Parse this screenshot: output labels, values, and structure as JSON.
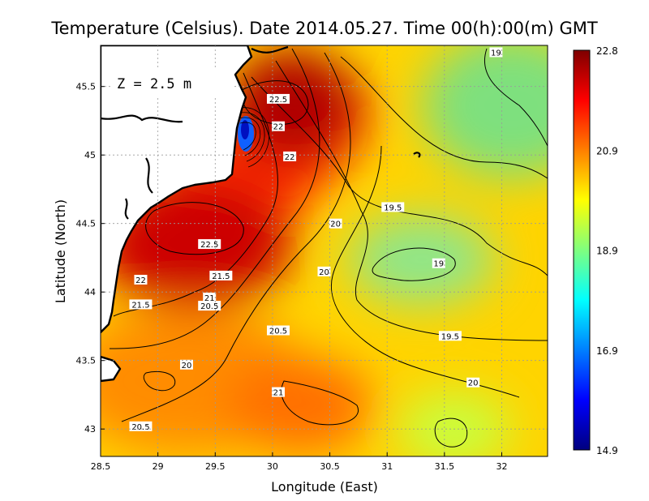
{
  "chart_data": {
    "type": "heatmap",
    "title": "Temperature (Celsius). Date 2014.05.27. Time 00(h):00(m)  GMT",
    "xlabel": "Longitude (East)",
    "ylabel": "Latitude (North)",
    "xlim": [
      28.5,
      32.4
    ],
    "ylim": [
      42.8,
      45.8
    ],
    "x_ticks": [
      "28.5",
      "29",
      "29.5",
      "30",
      "30.5",
      "31",
      "31.5",
      "32"
    ],
    "y_ticks": [
      "43",
      "43.5",
      "44",
      "44.5",
      "45",
      "45.5"
    ],
    "grid": true,
    "annotation": "Z = 2.5 m",
    "colorbar": {
      "min": 14.9,
      "max": 22.8,
      "tick_labels": [
        "22.8",
        "20.9",
        "18.9",
        "16.9",
        "14.9"
      ],
      "colors": [
        "#00007f",
        "#0000ff",
        "#007fff",
        "#00ffff",
        "#7fff7f",
        "#ffff00",
        "#ff7f00",
        "#ff0000",
        "#7f0000"
      ]
    },
    "contour_labels": [
      {
        "text": "22.5",
        "lon": 30.05,
        "lat": 45.41
      },
      {
        "text": "22",
        "lon": 30.05,
        "lat": 45.21
      },
      {
        "text": "22",
        "lon": 30.15,
        "lat": 44.99
      },
      {
        "text": "19",
        "lon": 31.95,
        "lat": 45.75
      },
      {
        "text": "19.5",
        "lon": 31.05,
        "lat": 44.62
      },
      {
        "text": "20",
        "lon": 30.55,
        "lat": 44.5
      },
      {
        "text": "22.5",
        "lon": 29.45,
        "lat": 44.35
      },
      {
        "text": "19",
        "lon": 31.45,
        "lat": 44.21
      },
      {
        "text": "20",
        "lon": 30.45,
        "lat": 44.15
      },
      {
        "text": "21.5",
        "lon": 29.55,
        "lat": 44.12
      },
      {
        "text": "22",
        "lon": 28.85,
        "lat": 44.09
      },
      {
        "text": "21",
        "lon": 29.45,
        "lat": 43.96
      },
      {
        "text": "20.5",
        "lon": 29.45,
        "lat": 43.9
      },
      {
        "text": "21.5",
        "lon": 28.85,
        "lat": 43.91
      },
      {
        "text": "20.5",
        "lon": 30.05,
        "lat": 43.72
      },
      {
        "text": "19.5",
        "lon": 31.55,
        "lat": 43.68
      },
      {
        "text": "20",
        "lon": 29.25,
        "lat": 43.47
      },
      {
        "text": "20",
        "lon": 31.75,
        "lat": 43.34
      },
      {
        "text": "21",
        "lon": 30.05,
        "lat": 43.27
      },
      {
        "text": "20.5",
        "lon": 28.85,
        "lat": 43.02
      }
    ]
  }
}
